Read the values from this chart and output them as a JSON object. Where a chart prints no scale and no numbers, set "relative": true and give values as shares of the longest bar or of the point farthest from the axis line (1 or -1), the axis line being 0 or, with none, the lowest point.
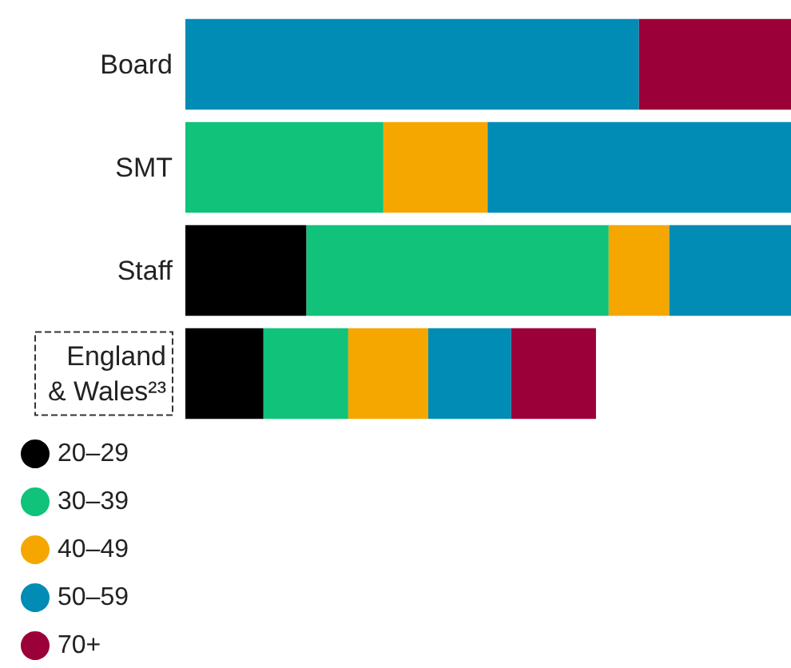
{
  "chart_data": {
    "type": "bar",
    "orientation": "horizontal",
    "stacked": true,
    "relative": true,
    "legend": "bottom left",
    "categories": [
      "Board",
      "SMT",
      "Staff",
      "England & Wales²³"
    ],
    "series": [
      {
        "name": "20–29",
        "color": "#000000",
        "values": [
          null,
          null,
          0.2,
          0.129
        ]
      },
      {
        "name": "30–39",
        "color": "#10c27a",
        "values": [
          null,
          0.327,
          0.499,
          0.14
        ]
      },
      {
        "name": "40–49",
        "color": "#f5a700",
        "values": [
          null,
          0.172,
          0.1,
          0.132
        ]
      },
      {
        "name": "50–59",
        "color": "#008cb4",
        "values": [
          0.749,
          0.501,
          0.201,
          0.137
        ]
      },
      {
        "name": "70+",
        "color": "#9b0039",
        "values": [
          0.251,
          null,
          null,
          0.14
        ]
      }
    ]
  }
}
